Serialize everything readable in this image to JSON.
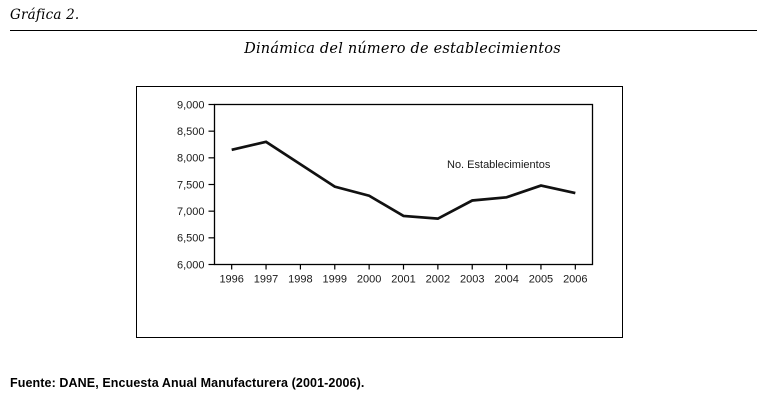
{
  "header": {
    "label": "Gráfica 2."
  },
  "chart_data": {
    "type": "line",
    "title": "Dinámica del número de establecimientos",
    "categories": [
      "1996",
      "1997",
      "1998",
      "1999",
      "2000",
      "2001",
      "2002",
      "2003",
      "2004",
      "2005",
      "2006"
    ],
    "series": [
      {
        "name": "No. Establecimientos",
        "values": [
          8150,
          8300,
          7880,
          7460,
          7290,
          6910,
          6860,
          7200,
          7260,
          7480,
          7340
        ]
      }
    ],
    "xlabel": "",
    "ylabel": "",
    "ylim": [
      6000,
      9000
    ],
    "ytick_step": 500,
    "grid": false,
    "legend_position": "inline-annotation",
    "line_color": "#111111",
    "axis_color": "#000000"
  },
  "footer": {
    "source": "Fuente: DANE, Encuesta Anual Manufacturera (2001-2006)."
  }
}
